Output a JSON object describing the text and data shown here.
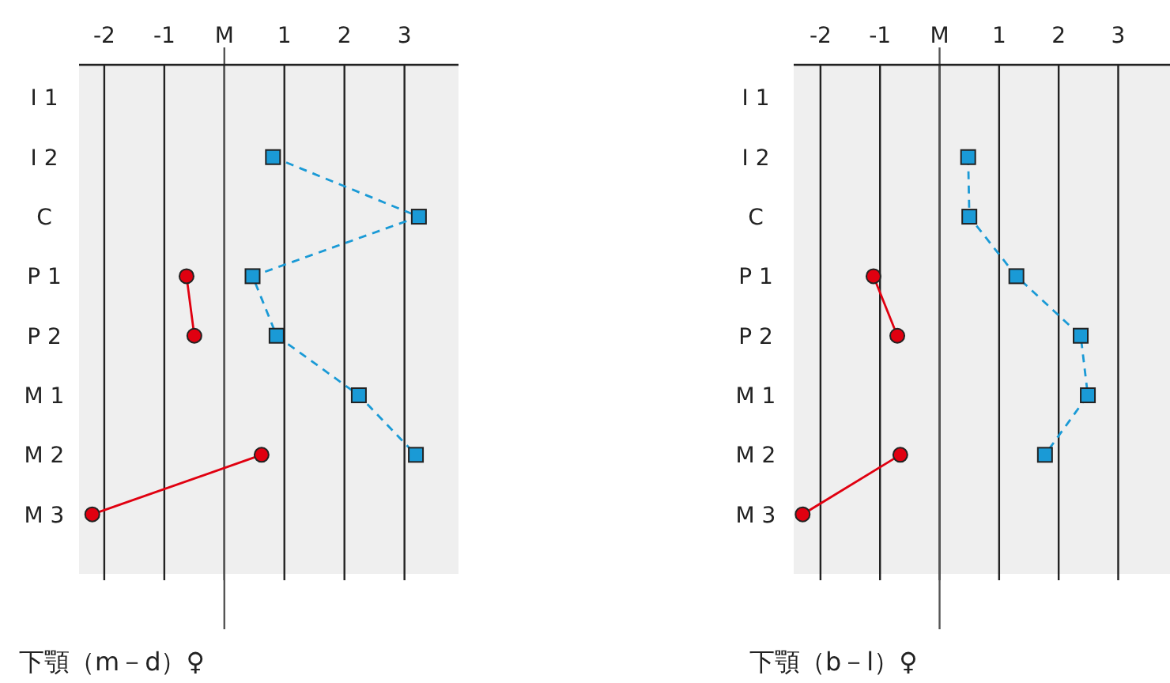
{
  "chart_data": [
    {
      "type": "line",
      "orientation": "horizontal",
      "xlabel": "下顎（m－d）♀",
      "categories": [
        "I 1",
        "I 2",
        "C",
        "P 1",
        "P 2",
        "M 1",
        "M 2",
        "M 3"
      ],
      "xlim": [
        -2.42,
        3.9
      ],
      "xticks": [
        -2,
        -1,
        {
          "value": 0,
          "label": "M"
        },
        1,
        2,
        3
      ],
      "grid": "x",
      "ref_lines": [
        {
          "axis": "x",
          "value": 0,
          "color": "#555555"
        }
      ],
      "series": [
        {
          "color": "#e00010",
          "marker": "circle",
          "line_style": "solid",
          "values": [
            null,
            null,
            null,
            -0.63,
            -0.5,
            null,
            0.62,
            -2.2
          ]
        },
        {
          "color": "#1a9ad6",
          "marker": "square",
          "line_style": "dashed",
          "values": [
            null,
            0.81,
            3.24,
            0.47,
            0.87,
            2.24,
            3.19,
            null
          ]
        }
      ]
    },
    {
      "type": "line",
      "orientation": "horizontal",
      "xlabel": "下顎（b－l）♀",
      "categories": [
        "I 1",
        "I 2",
        "C",
        "P 1",
        "P 2",
        "M 1",
        "M 2",
        "M 3"
      ],
      "xlim": [
        -2.45,
        3.87
      ],
      "xticks": [
        -2,
        -1,
        {
          "value": 0,
          "label": "M"
        },
        1,
        2,
        3
      ],
      "grid": "x",
      "ref_lines": [
        {
          "axis": "x",
          "value": 0,
          "color": "#555555"
        }
      ],
      "series": [
        {
          "color": "#e00010",
          "marker": "circle",
          "line_style": "solid",
          "values": [
            null,
            null,
            null,
            -1.11,
            -0.71,
            null,
            -0.66,
            -2.3
          ]
        },
        {
          "color": "#1a9ad6",
          "marker": "square",
          "line_style": "dashed",
          "values": [
            null,
            0.48,
            0.5,
            1.29,
            2.37,
            2.49,
            1.77,
            null
          ]
        }
      ]
    }
  ]
}
